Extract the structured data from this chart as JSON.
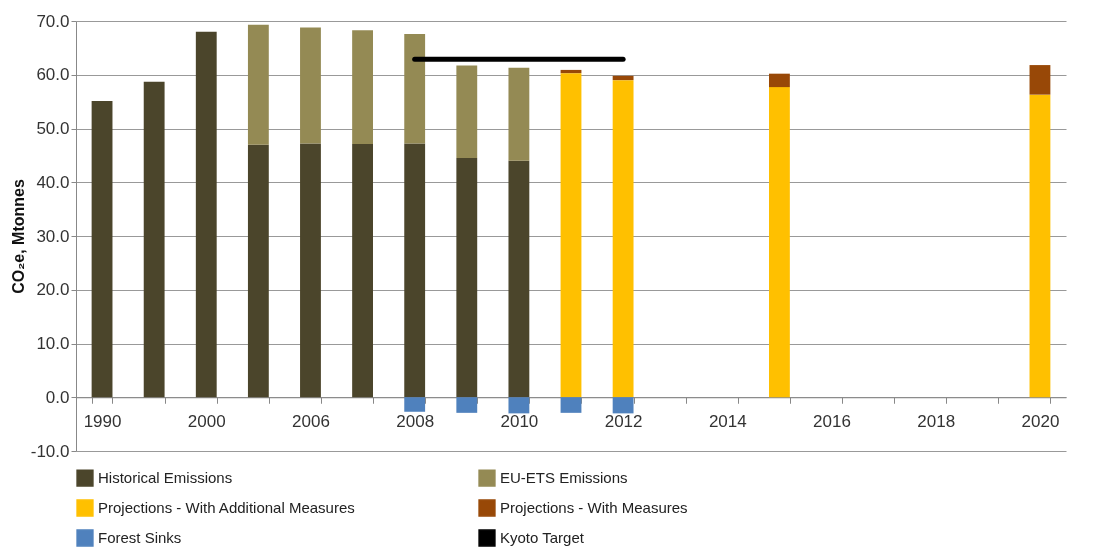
{
  "chart_data": {
    "type": "bar",
    "stacked": true,
    "ylabel": "CO₂e, Mtonnes",
    "categories": [
      "1990",
      null,
      "2000",
      null,
      "2006",
      null,
      "2008",
      null,
      "2010",
      null,
      "2012",
      null,
      "2014",
      null,
      "2016",
      null,
      "2018",
      null,
      "2020"
    ],
    "series": [
      {
        "name": "Historical Emissions",
        "color": "#4b452b",
        "values": [
          55.1,
          58.7,
          68.0,
          47.0,
          47.2,
          47.1,
          47.2,
          44.5,
          44.0,
          null,
          null,
          null,
          null,
          null,
          null,
          null,
          null,
          null,
          null
        ]
      },
      {
        "name": "EU-ETS Emissions",
        "color": "#948a54",
        "values": [
          null,
          null,
          null,
          22.3,
          21.6,
          21.2,
          20.4,
          17.2,
          17.3,
          null,
          null,
          null,
          null,
          null,
          null,
          null,
          null,
          null,
          null
        ]
      },
      {
        "name": "Projections - With Additional Measures",
        "color": "#ffc000",
        "values": [
          null,
          null,
          null,
          null,
          null,
          null,
          null,
          null,
          null,
          60.3,
          59.0,
          null,
          null,
          57.7,
          null,
          null,
          null,
          null,
          56.3
        ]
      },
      {
        "name": "Projections - With Measures",
        "color": "#984807",
        "values": [
          null,
          null,
          null,
          null,
          null,
          null,
          null,
          null,
          null,
          0.6,
          0.8,
          null,
          null,
          2.5,
          null,
          null,
          null,
          null,
          5.5
        ]
      },
      {
        "name": "Forest Sinks",
        "color": "#4f81bd",
        "values": [
          null,
          null,
          null,
          null,
          null,
          null,
          -2.7,
          -2.9,
          -3.0,
          -2.9,
          -3.0,
          null,
          null,
          null,
          null,
          null,
          null,
          null,
          null
        ]
      },
      {
        "name": "Kyoto Target",
        "type": "line",
        "color": "#000000",
        "values": [
          null,
          null,
          null,
          null,
          null,
          null,
          62.9,
          62.9,
          62.9,
          62.9,
          62.9,
          null,
          null,
          null,
          null,
          null,
          null,
          null,
          null
        ]
      }
    ],
    "ylim": [
      -10,
      70
    ],
    "yticks": [
      {
        "value": -10,
        "label": "-10.0"
      },
      {
        "value": 0,
        "label": "0.0"
      },
      {
        "value": 10,
        "label": "10.0"
      },
      {
        "value": 20,
        "label": "20.0"
      },
      {
        "value": 30,
        "label": "30.0"
      },
      {
        "value": 40,
        "label": "40.0"
      },
      {
        "value": 50,
        "label": "50.0"
      },
      {
        "value": 60,
        "label": "60.0"
      },
      {
        "value": 70,
        "label": "70.0"
      }
    ],
    "grid": "y",
    "legend": "bottom"
  }
}
